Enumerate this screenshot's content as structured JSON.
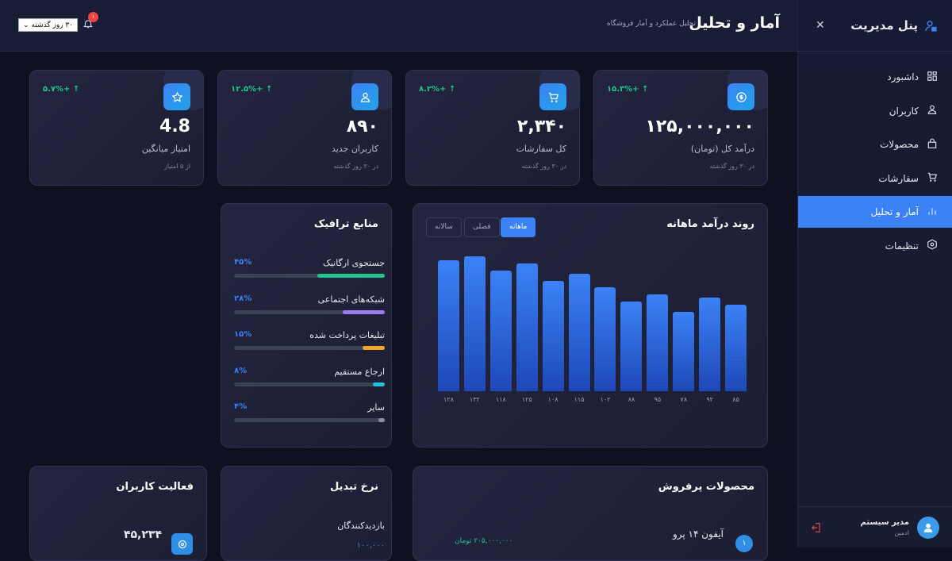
{
  "sidebar": {
    "title": "پنل مدیریت",
    "items": [
      {
        "label": "داشبورد",
        "icon": "grid-icon"
      },
      {
        "label": "کاربران",
        "icon": "user-icon"
      },
      {
        "label": "محصولات",
        "icon": "bag-icon"
      },
      {
        "label": "سفارشات",
        "icon": "cart-icon"
      },
      {
        "label": "آمار و تحلیل",
        "icon": "bar-chart-icon",
        "active": true
      },
      {
        "label": "تنظیمات",
        "icon": "settings-icon"
      }
    ],
    "user": {
      "name": "مدیر سیستم",
      "role": "ادمین"
    }
  },
  "header": {
    "title": "آمار و تحلیل",
    "subtitle": "تحلیل عملکرد و آمار فروشگاه",
    "period": "۳۰ روز گذشته",
    "notification_count": "۱"
  },
  "stats": [
    {
      "value": "۱۲۵,۰۰۰,۰۰۰",
      "label": "درآمد کل (تومان)",
      "sub": "در ۳۰ روز گذشته",
      "change": "۱۵.۳%+ ↑",
      "icon": "dollar-icon"
    },
    {
      "value": "۲,۳۴۰",
      "label": "کل سفارشات",
      "sub": "در ۳۰ روز گذشته",
      "change": "۸.۲%+ ↑",
      "icon": "cart-icon"
    },
    {
      "value": "۸۹۰",
      "label": "کاربران جدید",
      "sub": "در ۳۰ روز گذشته",
      "change": "۱۲.۵%+ ↑",
      "icon": "user-icon"
    },
    {
      "value": "4.8",
      "label": "امتیاز میانگین",
      "sub": "از ۵ امتیاز",
      "change": "۵.۷%+ ↑",
      "icon": "star-icon"
    }
  ],
  "revenue": {
    "title": "روند درآمد ماهانه",
    "tabs": [
      "ماهانه",
      "فصلی",
      "سالانه"
    ],
    "active_tab": "ماهانه"
  },
  "chart_data": {
    "type": "bar",
    "categories": [
      "۱۲۸",
      "۱۳۲",
      "۱۱۸",
      "۱۲۵",
      "۱۰۸",
      "۱۱۵",
      "۱۰۲",
      "۸۸",
      "۹۵",
      "۷۸",
      "۹۲",
      "۸۵"
    ],
    "values": [
      128,
      132,
      118,
      125,
      108,
      115,
      102,
      88,
      95,
      78,
      92,
      85
    ],
    "title": "روند درآمد ماهانه",
    "ylim": [
      0,
      132
    ],
    "grid": false,
    "color": "#3b82f6"
  },
  "traffic": {
    "title": "منابع ترافیک",
    "sources": [
      {
        "name": "جستجوی ارگانیک",
        "pct_label": "۴۵%",
        "pct": 45,
        "color": "#22c38e"
      },
      {
        "name": "شبکه‌های اجتماعی",
        "pct_label": "۲۸%",
        "pct": 28,
        "color": "#9b7cf0"
      },
      {
        "name": "تبلیغات پرداخت شده",
        "pct_label": "۱۵%",
        "pct": 15,
        "color": "#f5a524"
      },
      {
        "name": "ارجاع مستقیم",
        "pct_label": "۸%",
        "pct": 8,
        "color": "#1cc4e0"
      },
      {
        "name": "سایر",
        "pct_label": "۴%",
        "pct": 4,
        "color": "#8a8fa3"
      }
    ]
  },
  "top_products": {
    "title": "محصولات پرفروش",
    "items": [
      {
        "rank": "۱",
        "name": "آیفون ۱۴ پرو",
        "revenue": "۲۰۵,۰۰۰,۰۰۰ تومان"
      }
    ]
  },
  "conversion": {
    "title": "نرخ تبدیل",
    "visitors_label": "بازدیدکنندگان",
    "visitors_value": "۱۰۰,۰۰۰"
  },
  "activity": {
    "title": "فعالیت کاربران",
    "value": "۴۵,۲۳۴",
    "icon": "eye-icon"
  }
}
